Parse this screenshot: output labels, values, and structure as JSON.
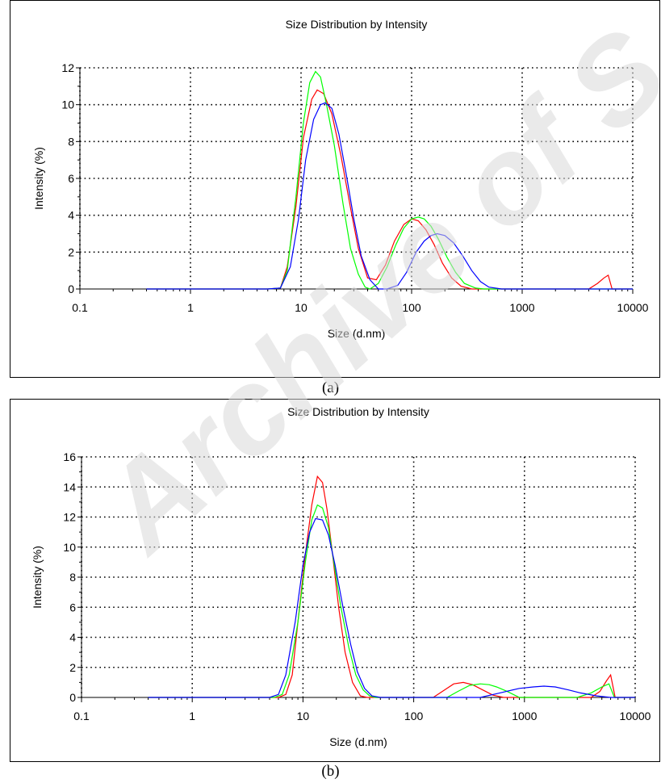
{
  "captions": [
    "(a)",
    "(b)"
  ],
  "watermark": {
    "text": "Archive of S",
    "color": "#d9d9d9"
  },
  "chart_data": [
    {
      "type": "line",
      "title": "Size Distribution by Intensity",
      "xlabel": "Size (d.nm)",
      "ylabel": "Intensity (%)",
      "xscale": "log",
      "xlim": [
        0.1,
        10000
      ],
      "ylim": [
        0,
        12
      ],
      "xticks": [
        0.1,
        1,
        10,
        100,
        1000,
        10000
      ],
      "xtick_labels": [
        "0.1",
        "1",
        "10",
        "100",
        "1000",
        "10000"
      ],
      "yticks": [
        0,
        2,
        4,
        6,
        8,
        10,
        12
      ],
      "ytick_labels": [
        "0",
        "2",
        "4",
        "6",
        "8",
        "10",
        "12"
      ],
      "grid": "dotted",
      "legend": "none",
      "series": [
        {
          "color": "#ff0000",
          "x": [
            0.4,
            5,
            6.5,
            7.5,
            9,
            10.5,
            12.5,
            14,
            16,
            19,
            23,
            28,
            33,
            40,
            48,
            58,
            70,
            85,
            100,
            115,
            135,
            160,
            190,
            230,
            280,
            350,
            450,
            1000,
            4000,
            4800,
            5500,
            6000,
            6500,
            10000
          ],
          "y": [
            0,
            0,
            0.05,
            1.2,
            4.5,
            8.2,
            10.3,
            10.8,
            10.6,
            9.5,
            7.2,
            4.4,
            2.2,
            0.6,
            0.5,
            1.3,
            2.6,
            3.5,
            3.8,
            3.7,
            3.2,
            2.4,
            1.4,
            0.6,
            0.15,
            0,
            0,
            0,
            0,
            0.3,
            0.6,
            0.75,
            0,
            0
          ]
        },
        {
          "color": "#00ff00",
          "x": [
            0.4,
            5,
            6.5,
            7.5,
            9,
            10.5,
            12,
            13.5,
            15,
            17,
            20,
            24,
            28,
            33,
            38,
            42,
            50,
            60,
            72,
            85,
            100,
            115,
            130,
            150,
            175,
            210,
            250,
            300,
            380,
            450,
            1000,
            10000
          ],
          "y": [
            0,
            0,
            0.05,
            1.0,
            5.0,
            9.0,
            11.2,
            11.8,
            11.5,
            10.0,
            7.8,
            4.6,
            2.2,
            0.8,
            0.1,
            0,
            0.3,
            1.2,
            2.4,
            3.3,
            3.8,
            3.9,
            3.8,
            3.4,
            2.7,
            1.7,
            0.9,
            0.3,
            0.05,
            0,
            0,
            0
          ]
        },
        {
          "color": "#0000ff",
          "x": [
            0.4,
            5,
            6.5,
            8,
            9.5,
            11,
            13,
            15,
            16.5,
            19,
            22,
            26,
            30,
            35,
            42,
            50,
            60,
            75,
            90,
            110,
            130,
            150,
            170,
            200,
            240,
            290,
            350,
            420,
            500,
            650,
            1000,
            10000
          ],
          "y": [
            0,
            0,
            0.05,
            1.2,
            3.8,
            7.0,
            9.2,
            10.0,
            10.1,
            9.8,
            8.4,
            6.0,
            3.8,
            1.8,
            0.5,
            0,
            0,
            0.2,
            0.9,
            2.0,
            2.6,
            2.9,
            3.0,
            2.9,
            2.5,
            1.8,
            1.0,
            0.4,
            0.1,
            0,
            0,
            0
          ]
        }
      ]
    },
    {
      "type": "line",
      "title": "Size Distribution by Intensity",
      "xlabel": "Size (d.nm)",
      "ylabel": "Intensity (%)",
      "xscale": "log",
      "xlim": [
        0.1,
        10000
      ],
      "ylim": [
        0,
        16
      ],
      "xticks": [
        0.1,
        1,
        10,
        100,
        1000,
        10000
      ],
      "xtick_labels": [
        "0.1",
        "1",
        "10",
        "100",
        "1000",
        "10000"
      ],
      "yticks": [
        0,
        2,
        4,
        6,
        8,
        10,
        12,
        14,
        16
      ],
      "ytick_labels": [
        "0",
        "2",
        "4",
        "6",
        "8",
        "10",
        "12",
        "14",
        "16"
      ],
      "grid": "dotted",
      "legend": "none",
      "series": [
        {
          "color": "#ff0000",
          "x": [
            0.4,
            6,
            7,
            8,
            9,
            10.5,
            12,
            13.5,
            15,
            16.5,
            18.5,
            21,
            24,
            28,
            33,
            38,
            45,
            150,
            190,
            230,
            280,
            340,
            420,
            520,
            650,
            4000,
            4800,
            5500,
            6000,
            6600,
            10000
          ],
          "y": [
            0,
            0,
            0.2,
            1.5,
            5.0,
            9.5,
            12.8,
            14.7,
            14.3,
            12.5,
            9.5,
            6.0,
            3.0,
            1.0,
            0.1,
            0,
            0,
            0,
            0.5,
            0.9,
            1.0,
            0.85,
            0.5,
            0.15,
            0,
            0,
            0.4,
            1.1,
            1.5,
            0,
            0
          ]
        },
        {
          "color": "#00ff00",
          "x": [
            0.4,
            5.5,
            6.5,
            7.5,
            9,
            10.5,
            12,
            13.5,
            15,
            17,
            19,
            22,
            26,
            30,
            35,
            40,
            45,
            200,
            250,
            320,
            400,
            480,
            560,
            700,
            900,
            3000,
            4000,
            5000,
            5800,
            6500,
            10000
          ],
          "y": [
            0,
            0,
            0.2,
            1.5,
            5.0,
            9.0,
            11.8,
            12.8,
            12.6,
            11.3,
            9.0,
            6.0,
            3.3,
            1.5,
            0.5,
            0.1,
            0,
            0,
            0.4,
            0.8,
            0.9,
            0.85,
            0.7,
            0.4,
            0,
            0,
            0.3,
            0.7,
            0.9,
            0,
            0
          ]
        },
        {
          "color": "#0000ff",
          "x": [
            0.4,
            5,
            6,
            7,
            8.5,
            10,
            11.5,
            13,
            15,
            17,
            19.5,
            23,
            27,
            31,
            36,
            42,
            50,
            400,
            600,
            900,
            1200,
            1500,
            1900,
            2500,
            3200,
            4500,
            6000,
            10000
          ],
          "y": [
            0,
            0,
            0.2,
            1.5,
            5.0,
            8.8,
            11.0,
            11.9,
            11.8,
            10.8,
            8.8,
            6.0,
            3.5,
            1.7,
            0.6,
            0.1,
            0,
            0,
            0.3,
            0.6,
            0.7,
            0.75,
            0.7,
            0.5,
            0.3,
            0.1,
            0,
            0
          ]
        }
      ]
    }
  ]
}
